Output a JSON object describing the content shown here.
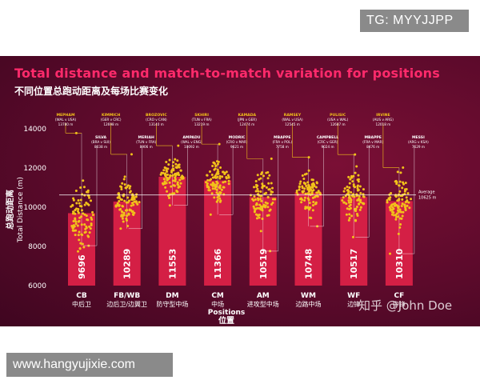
{
  "watermark_top": "TG: MYYJJPP",
  "watermark_bottom": "www.hangyujixie.com",
  "watermark_zhihu": "知乎 @John Doe",
  "header": {
    "title": "Total distance and match-to-match variation for positions",
    "subtitle": "不同位置总跑动距离及每场比赛变化"
  },
  "colors": {
    "bar": "#d41f45",
    "dot": "#f2c21a",
    "title": "#ff2a6b",
    "label_yellow": "#f2c21a"
  },
  "chart_data": {
    "type": "bar",
    "ylabel": "Total Distance (m)",
    "ylabel_cn": "总跑动距离",
    "xlabel": "Positions",
    "xlabel_cn": "位置",
    "ylim": [
      6000,
      14000
    ],
    "yticks": [
      "6000",
      "8000",
      "10000",
      "12000",
      "14000"
    ],
    "average": {
      "label": "Average",
      "value": 10625,
      "text": "10625 m"
    },
    "categories": [
      {
        "code": "CB",
        "cn": "中后卫",
        "value": 9696,
        "max": {
          "name": "MEPHAM",
          "match": "(WAL v USA)",
          "dist": "13780 m"
        },
        "min": {
          "name": "SILVA",
          "match": "(BRA v SUI)",
          "dist": "8038 m"
        }
      },
      {
        "code": "FB/WB",
        "cn": "边后卫/边翼卫",
        "value": 10289,
        "max": {
          "name": "KIMMICH",
          "match": "(GER v CRC)",
          "dist": "12698 m"
        },
        "min": {
          "name": "MERIAH",
          "match": "(TUN v FRA)",
          "dist": "8906 m"
        }
      },
      {
        "code": "DM",
        "cn": "防守型中场",
        "value": 11553,
        "max": {
          "name": "BROZOVIC",
          "match": "(CRO v CAN)",
          "dist": "13140 m"
        },
        "min": {
          "name": "AMPADU",
          "match": "(WAL v ENG)",
          "dist": "10092 m"
        }
      },
      {
        "code": "CM",
        "cn": "中场",
        "value": 11366,
        "max": {
          "name": "SKHIRI",
          "match": "(TUN v FRA)",
          "dist": "13219 m"
        },
        "min": {
          "name": "MODRIC",
          "match": "(CRO v MAR)",
          "dist": "9621 m"
        }
      },
      {
        "code": "AM",
        "cn": "进攻型中场",
        "value": 10519,
        "max": {
          "name": "KAMADA",
          "match": "(JPN v GER)",
          "dist": "12474 m"
        },
        "min": {
          "name": "MBAPPE",
          "match": "(FRA v POL)",
          "dist": "7758 m"
        }
      },
      {
        "code": "WM",
        "cn": "边路中场",
        "value": 10748,
        "max": {
          "name": "RAMSEY",
          "match": "(WAL v USA)",
          "dist": "12545 m"
        },
        "min": {
          "name": "CAMPBELL",
          "match": "(CRC v GER)",
          "dist": "9024 m"
        }
      },
      {
        "code": "WF",
        "cn": "边锋",
        "value": 10517,
        "max": {
          "name": "PULISIC",
          "match": "(USA v WAL)",
          "dist": "12687 m"
        },
        "min": {
          "name": "MBAPPE",
          "match": "(FRA v MAR)",
          "dist": "8476 m"
        }
      },
      {
        "code": "CF",
        "cn": "中锋",
        "value": 10310,
        "max": {
          "name": "IRVINE",
          "match": "(AUS v ARG)",
          "dist": "12018 m"
        },
        "min": {
          "name": "MESSI",
          "match": "(ARG v KSA)",
          "dist": "7629 m"
        }
      }
    ]
  }
}
